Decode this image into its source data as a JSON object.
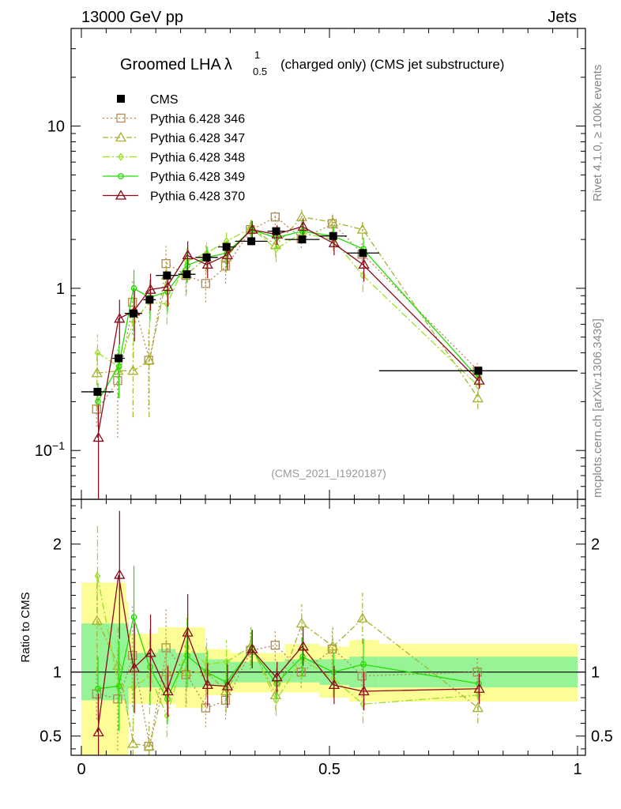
{
  "header": {
    "left": "13000 GeV pp",
    "right": "Jets"
  },
  "title": {
    "main": "Groomed LHA",
    "symbol": "λ",
    "sup": "1",
    "sub": "0.5",
    "suffix": "(charged only) (CMS jet substructure)"
  },
  "analysis_tag": "(CMS_2021_I1920187)",
  "side_labels": {
    "rivet": "Rivet 4.1.0, ≥ 100k events",
    "mcplots": "mcplots.cern.ch [arXiv:1306.3436]"
  },
  "ratio_ylabel": "Ratio to CMS",
  "chart_data": [
    {
      "type": "line",
      "panel": "main",
      "yscale": "log",
      "xlim": [
        0,
        1
      ],
      "ylim": [
        0.05,
        40
      ],
      "yticks": [
        {
          "v": 0.1,
          "label": "10^-1"
        },
        {
          "v": 1,
          "label": "1"
        },
        {
          "v": 10,
          "label": "10"
        }
      ],
      "x": [
        0.0325,
        0.075,
        0.105,
        0.1375,
        0.1725,
        0.2125,
        0.2525,
        0.2925,
        0.3425,
        0.3925,
        0.445,
        0.5075,
        0.5675,
        0.8
      ],
      "data": {
        "name": "CMS",
        "values": [
          0.23,
          0.37,
          0.7,
          0.85,
          1.2,
          1.22,
          1.55,
          1.8,
          1.95,
          2.25,
          2.0,
          2.1,
          1.65,
          0.31
        ],
        "xerr": [
          0.0325,
          0.0125,
          0.0175,
          0.0125,
          0.0225,
          0.0175,
          0.0225,
          0.0175,
          0.0325,
          0.0175,
          0.035,
          0.0275,
          0.0325,
          0.2
        ]
      },
      "series": [
        {
          "name": "Pythia 6.428 346",
          "color": "#b08850",
          "marker": "square",
          "dash": "2,3",
          "values": [
            0.18,
            0.27,
            0.82,
            0.36,
            1.42,
            1.2,
            1.07,
            1.37,
            2.3,
            2.75,
            2.02,
            2.5,
            1.62,
            0.31
          ],
          "err": [
            0.04,
            0.15,
            0.3,
            0.18,
            0.4,
            0.3,
            0.25,
            0.3,
            0.3,
            0.3,
            0.25,
            0.3,
            0.3,
            0.04
          ]
        },
        {
          "name": "Pythia 6.428 347",
          "color": "#a8b030",
          "marker": "triangle",
          "dash": "7,3,2,3",
          "values": [
            0.3,
            0.31,
            0.31,
            0.36,
            1.2,
            1.22,
            1.55,
            1.55,
            2.35,
            1.85,
            2.75,
            2.55,
            2.3,
            0.21
          ],
          "err": [
            0.12,
            0.1,
            0.15,
            0.2,
            0.3,
            0.3,
            0.3,
            0.3,
            0.3,
            0.3,
            0.3,
            0.3,
            0.3,
            0.03
          ]
        },
        {
          "name": "Pythia 6.428 348",
          "color": "#99e020",
          "marker": "diamond",
          "dash": "9,3,2,3",
          "values": [
            0.4,
            0.33,
            0.62,
            0.82,
            0.8,
            1.47,
            1.65,
            1.95,
            2.35,
            1.75,
            2.2,
            2.0,
            1.2,
            0.25
          ],
          "err": [
            0.12,
            0.12,
            0.25,
            0.25,
            0.2,
            0.3,
            0.3,
            0.3,
            0.3,
            0.3,
            0.3,
            0.3,
            0.25,
            0.03
          ]
        },
        {
          "name": "Pythia 6.428 349",
          "color": "#22dd00",
          "marker": "circle",
          "dash": "",
          "values": [
            0.2,
            0.33,
            1.0,
            0.88,
            0.95,
            1.38,
            1.55,
            1.65,
            2.3,
            2.05,
            2.25,
            2.1,
            1.75,
            0.28
          ],
          "err": [
            0.06,
            0.12,
            0.3,
            0.25,
            0.25,
            0.3,
            0.25,
            0.3,
            0.3,
            0.3,
            0.3,
            0.3,
            0.3,
            0.03
          ]
        },
        {
          "name": "Pythia 6.428 370",
          "color": "#8b0a1a",
          "marker": "triangle",
          "dash": "",
          "values": [
            0.12,
            0.65,
            0.72,
            0.98,
            1.02,
            1.6,
            1.4,
            1.6,
            2.3,
            2.15,
            2.4,
            1.9,
            1.4,
            0.27
          ],
          "err": [
            0.07,
            0.2,
            0.25,
            0.25,
            0.25,
            0.35,
            0.25,
            0.3,
            0.3,
            0.3,
            0.3,
            0.3,
            0.3,
            0.03
          ]
        }
      ]
    },
    {
      "type": "line",
      "panel": "ratio",
      "ylabel": "Ratio to CMS",
      "xlim": [
        0,
        1
      ],
      "ylim": [
        0.35,
        2.35
      ],
      "yticks": [
        {
          "v": 0.5,
          "label": "0.5"
        },
        {
          "v": 1,
          "label": "1"
        },
        {
          "v": 2,
          "label": "2"
        }
      ],
      "xticks": [
        {
          "v": 0,
          "label": "0"
        },
        {
          "v": 0.5,
          "label": "0.5"
        },
        {
          "v": 1,
          "label": "1"
        }
      ],
      "bands": [
        {
          "lo": 0.0,
          "hi": 0.09,
          "inner": [
            0.78,
            1.38
          ],
          "outer": [
            0.3,
            1.7
          ]
        },
        {
          "lo": 0.09,
          "hi": 0.095,
          "inner": [
            0.7,
            1.38
          ],
          "outer": [
            0.35,
            1.55
          ]
        },
        {
          "lo": 0.095,
          "hi": 0.155,
          "inner": [
            0.88,
            1.15
          ],
          "outer": [
            0.75,
            1.3
          ]
        },
        {
          "lo": 0.155,
          "hi": 0.19,
          "inner": [
            0.88,
            1.18
          ],
          "outer": [
            0.75,
            1.35
          ]
        },
        {
          "lo": 0.19,
          "hi": 0.25,
          "inner": [
            0.88,
            1.15
          ],
          "outer": [
            0.72,
            1.35
          ]
        },
        {
          "lo": 0.25,
          "hi": 0.3,
          "inner": [
            0.9,
            1.1
          ],
          "outer": [
            0.82,
            1.18
          ]
        },
        {
          "lo": 0.3,
          "hi": 0.41,
          "inner": [
            0.92,
            1.08
          ],
          "outer": [
            0.84,
            1.15
          ]
        },
        {
          "lo": 0.41,
          "hi": 0.48,
          "inner": [
            0.92,
            1.1
          ],
          "outer": [
            0.84,
            1.22
          ]
        },
        {
          "lo": 0.48,
          "hi": 0.54,
          "inner": [
            0.9,
            1.1
          ],
          "outer": [
            0.8,
            1.2
          ]
        },
        {
          "lo": 0.54,
          "hi": 0.6,
          "inner": [
            0.88,
            1.12
          ],
          "outer": [
            0.77,
            1.25
          ]
        },
        {
          "lo": 0.6,
          "hi": 1.0,
          "inner": [
            0.88,
            1.12
          ],
          "outer": [
            0.77,
            1.22
          ]
        }
      ],
      "series": [
        {
          "name": "Pythia 6.428 346",
          "values": [
            0.83,
            0.79,
            1.13,
            0.42,
            1.19,
            0.98,
            0.72,
            0.78,
            1.17,
            1.21,
            1.0,
            1.18,
            0.97,
            1.0
          ],
          "err": [
            0.2,
            0.4,
            0.4,
            0.1,
            0.3,
            0.25,
            0.15,
            0.15,
            0.15,
            0.12,
            0.12,
            0.15,
            0.17,
            0.12
          ]
        },
        {
          "name": "Pythia 6.428 347",
          "values": [
            1.4,
            1.05,
            0.44,
            0.42,
            1.0,
            1.0,
            1.0,
            0.85,
            1.2,
            0.82,
            1.38,
            1.2,
            1.42,
            0.72
          ],
          "err": [
            0.4,
            0.3,
            0.2,
            0.2,
            0.25,
            0.25,
            0.2,
            0.17,
            0.15,
            0.12,
            0.15,
            0.15,
            0.2,
            0.12
          ]
        },
        {
          "name": "Pythia 6.428 348",
          "values": [
            1.75,
            0.89,
            0.88,
            0.97,
            0.66,
            1.2,
            1.06,
            1.08,
            1.2,
            0.78,
            1.1,
            0.95,
            0.75,
            0.82
          ],
          "err": [
            0.4,
            0.35,
            0.3,
            0.3,
            0.17,
            0.25,
            0.2,
            0.17,
            0.15,
            0.12,
            0.15,
            0.15,
            0.15,
            0.12
          ]
        },
        {
          "name": "Pythia 6.428 349",
          "values": [
            0.87,
            0.89,
            1.43,
            1.04,
            0.79,
            1.13,
            1.0,
            0.92,
            1.18,
            0.91,
            1.12,
            1.0,
            1.06,
            0.91
          ],
          "err": [
            0.25,
            0.35,
            0.4,
            0.3,
            0.2,
            0.25,
            0.17,
            0.17,
            0.15,
            0.12,
            0.15,
            0.15,
            0.2,
            0.12
          ]
        },
        {
          "name": "Pythia 6.428 370",
          "values": [
            0.53,
            1.76,
            1.03,
            1.15,
            0.85,
            1.31,
            0.9,
            0.89,
            1.18,
            0.96,
            1.2,
            0.9,
            0.85,
            0.87
          ],
          "err": [
            0.3,
            0.5,
            0.35,
            0.3,
            0.2,
            0.3,
            0.17,
            0.17,
            0.15,
            0.12,
            0.15,
            0.15,
            0.15,
            0.12
          ]
        }
      ]
    }
  ]
}
